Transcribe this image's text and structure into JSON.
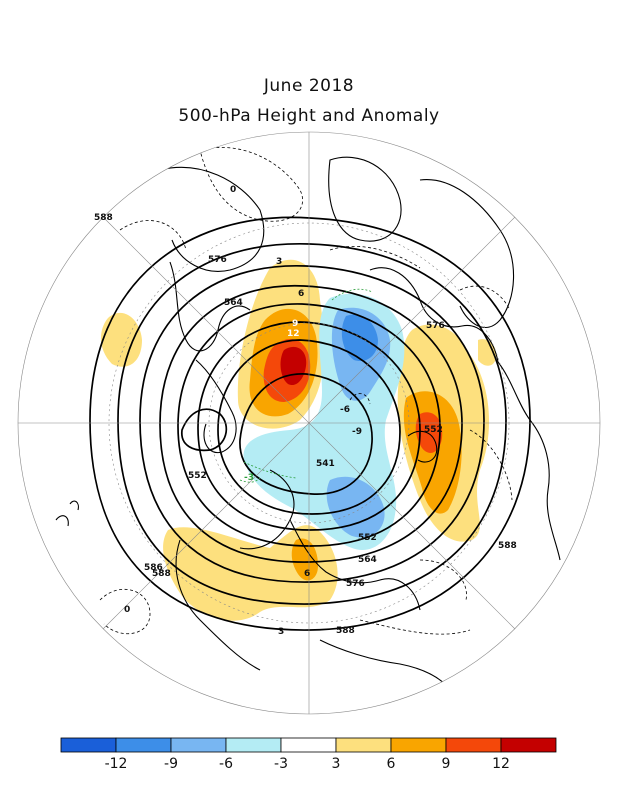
{
  "title": {
    "line1": "June 2018",
    "line2": "500-hPa Height and Anomaly"
  },
  "map": {
    "projection": "north-polar-stereographic",
    "height_contour_labels": [
      "588",
      "576",
      "564",
      "552",
      "541",
      "552",
      "564",
      "576",
      "588",
      "586",
      "588",
      "576",
      "588",
      "552"
    ],
    "anomaly_contour_labels": [
      "0",
      "3",
      "6",
      "9",
      "12",
      "-3",
      "-6",
      "-9",
      "6",
      "0",
      "3"
    ]
  },
  "colorbar": {
    "tick_labels": [
      "-12",
      "-9",
      "-6",
      "-3",
      "3",
      "6",
      "9",
      "12"
    ],
    "colors": [
      "#1a5fd9",
      "#3d8ee8",
      "#78b6f2",
      "#b4ecf4",
      "#ffffff",
      "#fde07e",
      "#f9a500",
      "#f4480a",
      "#c40000"
    ]
  }
}
